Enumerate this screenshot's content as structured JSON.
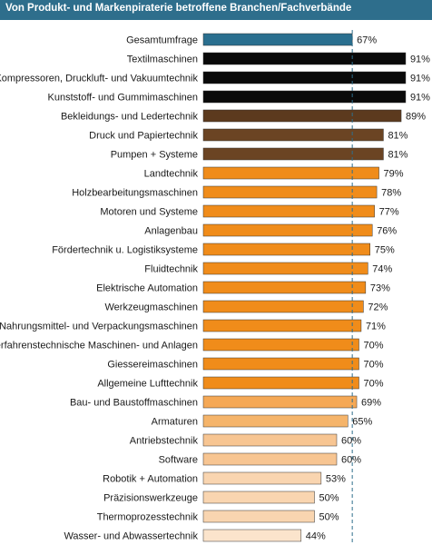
{
  "title": "Von Produkt- und Markenpiraterie betroffene Branchen/Fachverbände",
  "colors": {
    "title_bar": "#2e6e8c",
    "reference_line": "#2e6e8c",
    "bar_outline": "#333333"
  },
  "chart_data": {
    "type": "bar",
    "orientation": "horizontal",
    "title": "Von Produkt- und Markenpiraterie betroffene Branchen/Fachverbände",
    "xlim": [
      0,
      100
    ],
    "grid": false,
    "categories": [
      "Gesamtumfrage",
      "Textilmaschinen",
      "Kompressoren, Druckluft- und Vakuumtechnik",
      "Kunststoff- und Gummimaschinen",
      "Bekleidungs- und Ledertechnik",
      "Druck und Papiertechnik",
      "Pumpen + Systeme",
      "Landtechnik",
      "Holzbearbeitungsmaschinen",
      "Motoren und Systeme",
      "Anlagenbau",
      "Fördertechnik u. Logistiksysteme",
      "Fluidtechnik",
      "Elektrische Automation",
      "Werkzeugmaschinen",
      "Nahrungsmittel- und Verpackungsmaschinen",
      "Verfahrenstechnische Maschinen- und Anlagen",
      "Giessereimaschinen",
      "Allgemeine Lufttechnik",
      "Bau- und Baustoffmaschinen",
      "Armaturen",
      "Antriebstechnik",
      "Software",
      "Robotik + Automation",
      "Präzisionswerkzeuge",
      "Thermoprozesstechnik",
      "Wasser- und Abwassertechnik"
    ],
    "values": [
      67,
      91,
      91,
      91,
      89,
      81,
      81,
      79,
      78,
      77,
      76,
      75,
      74,
      73,
      72,
      71,
      70,
      70,
      70,
      69,
      65,
      60,
      60,
      53,
      50,
      50,
      44
    ],
    "value_labels": [
      "67%",
      "91%",
      "91%",
      "91%",
      "89%",
      "81%",
      "81%",
      "79%",
      "78%",
      "77%",
      "76%",
      "75%",
      "74%",
      "73%",
      "72%",
      "71%",
      "70%",
      "70%",
      "70%",
      "69%",
      "65%",
      "60%",
      "60%",
      "53%",
      "50%",
      "50%",
      "44%"
    ],
    "bar_colors": [
      "#2a6f8f",
      "#0a0a0a",
      "#0a0a0a",
      "#0a0a0a",
      "#5c3a1e",
      "#6b4423",
      "#6b4423",
      "#f08c1a",
      "#f08c1a",
      "#f08c1a",
      "#f08c1a",
      "#f08c1a",
      "#f08c1a",
      "#f08c1a",
      "#f08c1a",
      "#f08c1a",
      "#f08c1a",
      "#f08c1a",
      "#f08c1a",
      "#f5a855",
      "#f5b46a",
      "#f7c592",
      "#f7c592",
      "#f9d5b0",
      "#f9d5b0",
      "#f9d5b0",
      "#fbe4cc"
    ],
    "reference_line": {
      "value": 67,
      "label": "67 %"
    }
  }
}
